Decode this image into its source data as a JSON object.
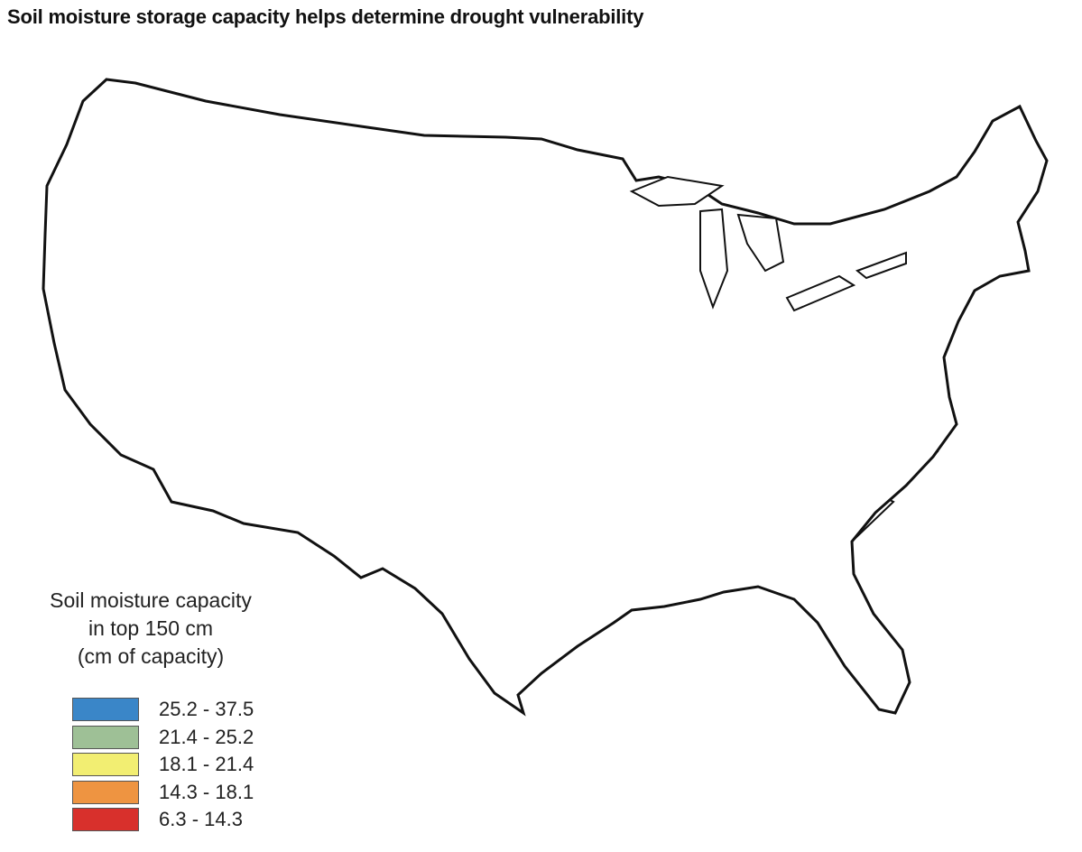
{
  "title": "Soil moisture storage capacity helps determine drought vulnerability",
  "legend": {
    "title_lines": [
      "Soil moisture capacity",
      "in top 150 cm",
      "(cm of capacity)"
    ],
    "items": [
      {
        "label": "25.2 - 37.5",
        "color": "#3a86c8"
      },
      {
        "label": "21.4 - 25.2",
        "color": "#9ec096"
      },
      {
        "label": "18.1 - 21.4",
        "color": "#f2ee72"
      },
      {
        "label": "14.3 - 18.1",
        "color": "#ee9441"
      },
      {
        "label": "6.3 - 14.3",
        "color": "#d8302c"
      }
    ]
  },
  "map": {
    "region": "Contiguous United States",
    "unit": "cm",
    "classes": [
      "25.2 - 37.5",
      "21.4 - 25.2",
      "18.1 - 21.4",
      "14.3 - 18.1",
      "6.3 - 14.3"
    ]
  }
}
